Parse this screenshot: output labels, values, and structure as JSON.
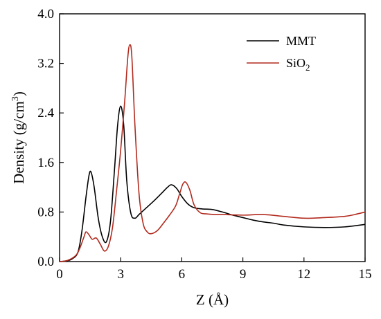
{
  "chart_data": {
    "type": "line",
    "title": "",
    "xlabel": "Z (Å)",
    "ylabel_main": "Density (g/cm",
    "ylabel_sup": "3",
    "ylabel_end": ")",
    "xlim": [
      0,
      15
    ],
    "ylim": [
      0,
      4.0
    ],
    "x_ticks": [
      0,
      3,
      6,
      9,
      12,
      15
    ],
    "x_tick_labels": [
      "0",
      "3",
      "6",
      "9",
      "12",
      "15"
    ],
    "y_ticks": [
      0,
      0.8,
      1.6,
      2.4,
      3.2,
      4.0
    ],
    "y_tick_labels": [
      "0.0",
      "0.8",
      "1.6",
      "2.4",
      "3.2",
      "4.0"
    ],
    "grid": false,
    "legend_position": "top-right",
    "series": [
      {
        "name": "MMT",
        "color": "#000000",
        "x": [
          0,
          0.3,
          0.6,
          0.9,
          1.1,
          1.3,
          1.45,
          1.55,
          1.7,
          1.9,
          2.1,
          2.3,
          2.5,
          2.7,
          2.85,
          3.0,
          3.15,
          3.3,
          3.5,
          3.7,
          3.9,
          4.2,
          4.6,
          5.0,
          5.3,
          5.5,
          5.75,
          6.0,
          6.3,
          6.6,
          7.0,
          7.5,
          8.0,
          8.5,
          9.0,
          9.5,
          10,
          10.5,
          11,
          12,
          13,
          14,
          15
        ],
        "y": [
          0,
          0.01,
          0.04,
          0.15,
          0.5,
          1.05,
          1.4,
          1.44,
          1.2,
          0.7,
          0.4,
          0.32,
          0.65,
          1.5,
          2.2,
          2.51,
          2.2,
          1.3,
          0.78,
          0.7,
          0.76,
          0.85,
          0.97,
          1.1,
          1.2,
          1.24,
          1.18,
          1.05,
          0.93,
          0.87,
          0.85,
          0.84,
          0.8,
          0.75,
          0.71,
          0.67,
          0.64,
          0.62,
          0.59,
          0.56,
          0.55,
          0.56,
          0.6
        ]
      },
      {
        "name": "SiO",
        "name_sub": "2",
        "color": "#b22a1e",
        "x": [
          0,
          0.4,
          0.8,
          1.0,
          1.2,
          1.3,
          1.45,
          1.6,
          1.8,
          2.0,
          2.2,
          2.4,
          2.6,
          2.8,
          3.0,
          3.2,
          3.35,
          3.45,
          3.55,
          3.7,
          3.9,
          4.1,
          4.3,
          4.5,
          4.8,
          5.1,
          5.4,
          5.7,
          5.9,
          6.05,
          6.2,
          6.4,
          6.6,
          6.9,
          7.2,
          7.6,
          8.0,
          9.0,
          10,
          11,
          12,
          13,
          14,
          14.5,
          15
        ],
        "y": [
          0,
          0.02,
          0.1,
          0.22,
          0.4,
          0.48,
          0.43,
          0.36,
          0.38,
          0.28,
          0.17,
          0.25,
          0.55,
          1.15,
          1.8,
          2.6,
          3.3,
          3.5,
          3.3,
          2.2,
          1.1,
          0.62,
          0.48,
          0.45,
          0.5,
          0.62,
          0.75,
          0.9,
          1.1,
          1.25,
          1.28,
          1.15,
          0.92,
          0.79,
          0.77,
          0.76,
          0.76,
          0.75,
          0.76,
          0.73,
          0.7,
          0.71,
          0.73,
          0.76,
          0.8
        ]
      }
    ]
  }
}
